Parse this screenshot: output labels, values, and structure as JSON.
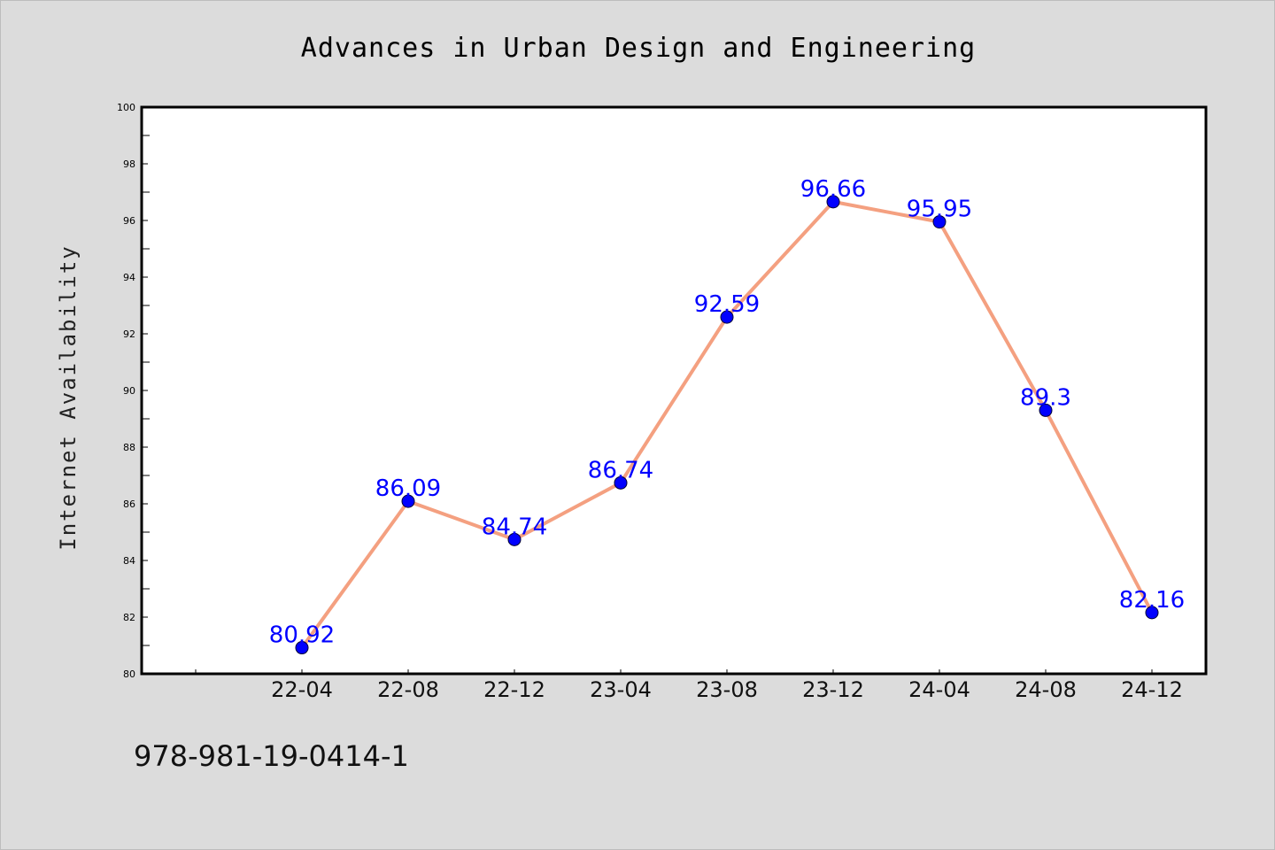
{
  "chart_data": {
    "type": "line",
    "title": "Advances in Urban Design and Engineering",
    "ylabel": "Internet Availability",
    "xlabel": "",
    "categories": [
      "22-04",
      "22-08",
      "22-12",
      "23-04",
      "23-08",
      "23-12",
      "24-04",
      "24-08",
      "24-12"
    ],
    "values": [
      80.92,
      86.09,
      84.74,
      86.74,
      92.59,
      96.66,
      95.95,
      89.3,
      82.16
    ],
    "data_labels": [
      "80.92",
      "86.09",
      "84.74",
      "86.74",
      "92.59",
      "96.66",
      "95.95",
      "89.3",
      "82.16"
    ],
    "ylim": [
      80,
      100
    ],
    "yticks": [
      "80",
      "82",
      "84",
      "86",
      "88",
      "90",
      "92",
      "94",
      "96",
      "98",
      "100"
    ],
    "grid": false,
    "legend": "none",
    "colors": {
      "line": "#f4a080",
      "marker": "#0000ff",
      "data_label": "#0000ff",
      "background": "#dcdcdc",
      "plot_background": "#ffffff"
    }
  },
  "footer": {
    "isbn": "978-981-19-0414-1"
  }
}
